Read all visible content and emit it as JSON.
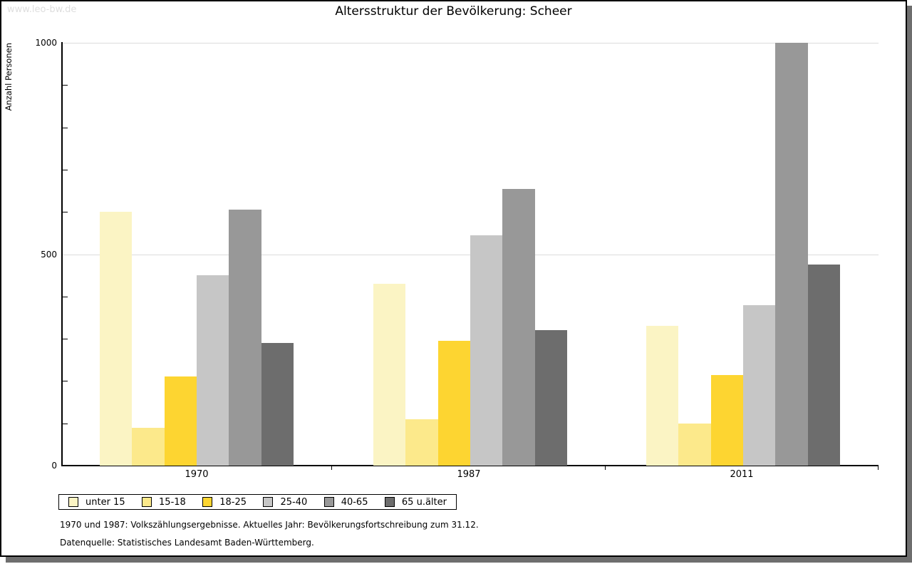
{
  "watermark": "www.leo-bw.de",
  "title": "Altersstruktur der Bevölkerung: Scheer",
  "footnotes": {
    "line1": "1970 und 1987: Volkszählungsergebnisse. Aktuelles Jahr: Bevölkerungsfortschreibung zum 31.12.",
    "line2": "Datenquelle: Statistisches Landesamt Baden-Württemberg."
  },
  "chart_data": {
    "type": "bar",
    "title": "Altersstruktur der Bevölkerung: Scheer",
    "xlabel": "",
    "ylabel": "Anzahl Personen",
    "categories": [
      "1970",
      "1987",
      "2011"
    ],
    "series": [
      {
        "name": "unter 15",
        "color": "#fbf4c4",
        "values": [
          600,
          430,
          330
        ]
      },
      {
        "name": "15-18",
        "color": "#fce98b",
        "values": [
          90,
          110,
          100
        ]
      },
      {
        "name": "18-25",
        "color": "#fdd531",
        "values": [
          210,
          295,
          215
        ]
      },
      {
        "name": "25-40",
        "color": "#c6c6c6",
        "values": [
          450,
          545,
          380
        ]
      },
      {
        "name": "40-65",
        "color": "#989898",
        "values": [
          605,
          655,
          1000
        ]
      },
      {
        "name": "65 u.älter",
        "color": "#6d6d6d",
        "values": [
          290,
          320,
          475
        ]
      }
    ],
    "ylim": [
      0,
      1000
    ],
    "yticks_labeled": [
      0,
      500,
      1000
    ],
    "ytick_minor_step": 100,
    "grid": "horizontal gridlines at 500 and 1000",
    "legend_position": "bottom-left"
  }
}
